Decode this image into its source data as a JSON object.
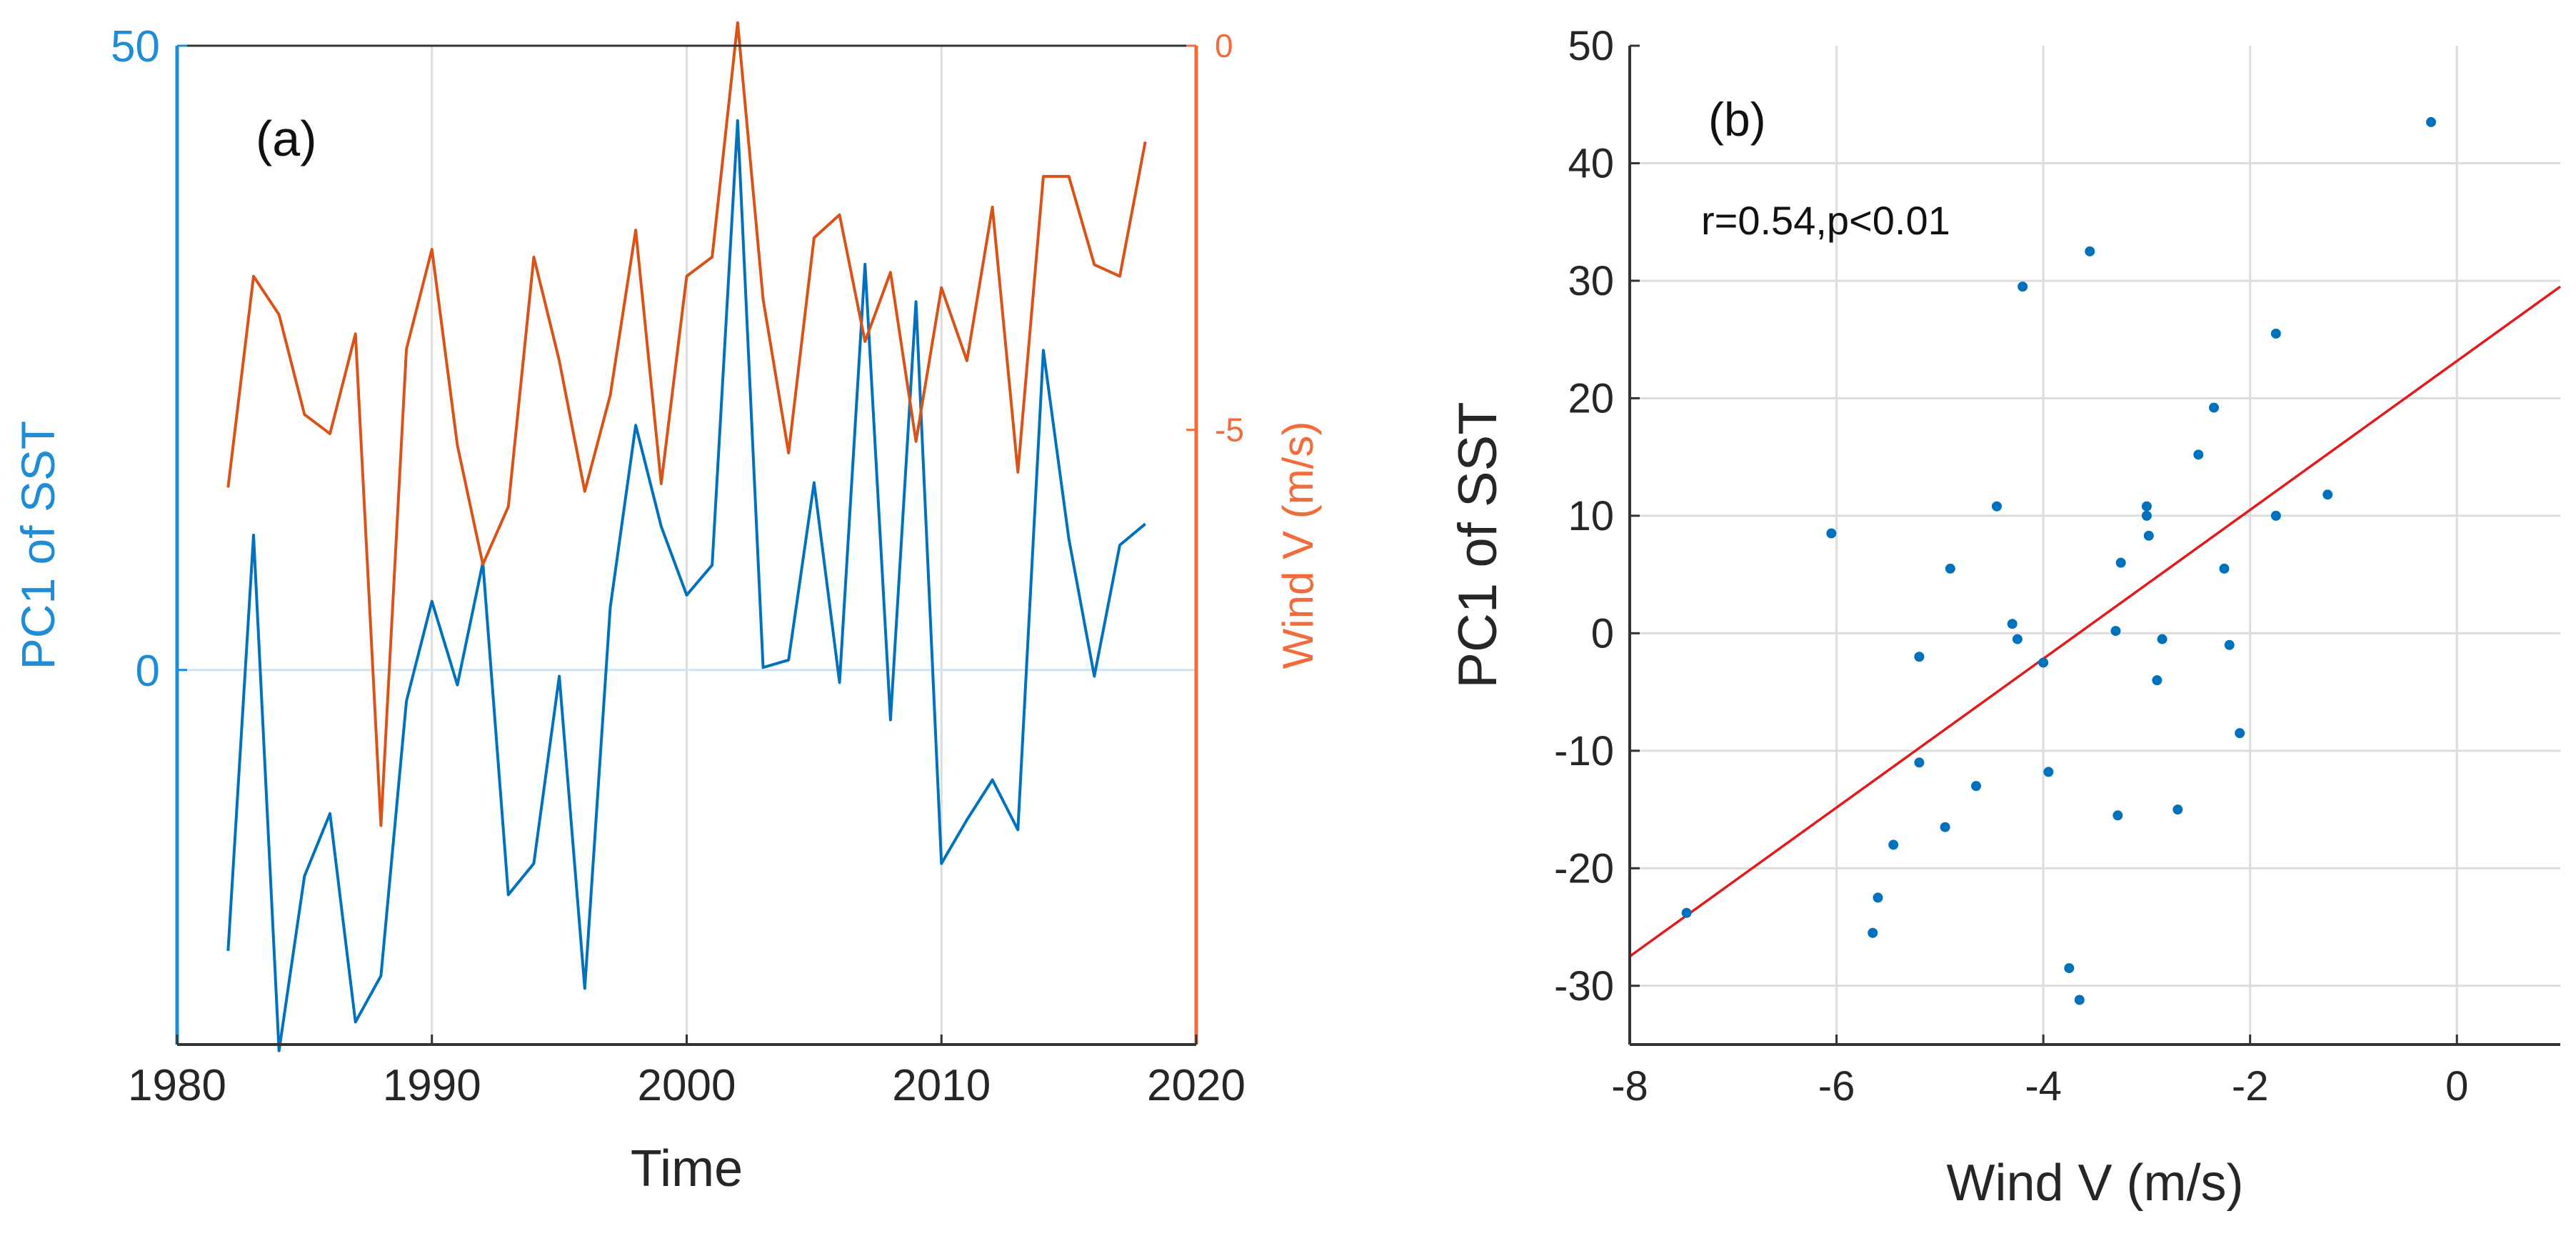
{
  "chart_data": [
    {
      "panel_label": "(a)",
      "type": "line",
      "xlabel": "Time",
      "xlim": [
        1980,
        2020
      ],
      "xticks": [
        "1980",
        "1990",
        "2000",
        "2010",
        "2020"
      ],
      "left_axis": {
        "label": "PC1 of SST",
        "ylim": [
          -30,
          50
        ],
        "ticks": [
          "0",
          "50"
        ],
        "tick_values": [
          0,
          50
        ],
        "color": "#1f8dd6"
      },
      "right_axis": {
        "label": "Wind V (m/s)",
        "ylim": [
          -13,
          0
        ],
        "ticks": [
          "-5",
          "0"
        ],
        "tick_values": [
          -5,
          0
        ],
        "color": "#f26b3a"
      },
      "grid": true,
      "series": [
        {
          "name": "PC1 of SST",
          "axis": "left",
          "color": "#0072bd",
          "x": [
            1982,
            1983,
            1984,
            1985,
            1986,
            1987,
            1988,
            1989,
            1990,
            1991,
            1992,
            1993,
            1994,
            1995,
            1996,
            1997,
            1998,
            1999,
            2000,
            2001,
            2002,
            2003,
            2004,
            2005,
            2006,
            2007,
            2008,
            2009,
            2010,
            2011,
            2012,
            2013,
            2014,
            2015,
            2016,
            2017,
            2018
          ],
          "values": [
            -22.5,
            10.8,
            -30.5,
            -16.5,
            -11.5,
            -28.2,
            -24.5,
            -2.5,
            5.5,
            -1.2,
            8.6,
            -18,
            -15.5,
            -0.5,
            -25.5,
            5,
            19.6,
            11.5,
            6,
            8.4,
            44,
            0.2,
            0.8,
            15,
            -1,
            32.5,
            -4,
            29.5,
            -15.5,
            -12,
            -8.8,
            -12.8,
            25.6,
            10.5,
            -0.5,
            10,
            11.7
          ]
        },
        {
          "name": "Wind V (m/s)",
          "axis": "right",
          "color": "#d95319",
          "x": [
            1982,
            1983,
            1984,
            1985,
            1986,
            1987,
            1988,
            1989,
            1990,
            1991,
            1992,
            1993,
            1994,
            1995,
            1996,
            1997,
            1998,
            1999,
            2000,
            2001,
            2002,
            2003,
            2004,
            2005,
            2006,
            2007,
            2008,
            2009,
            2010,
            2011,
            2012,
            2013,
            2014,
            2015,
            2016,
            2017,
            2018
          ],
          "values": [
            -5.75,
            -3.0,
            -3.5,
            -4.8,
            -5.05,
            -3.75,
            -10.15,
            -3.95,
            -2.65,
            -5.2,
            -6.75,
            -6.0,
            -2.75,
            -4.1,
            -5.8,
            -4.55,
            -2.4,
            -5.7,
            -3.0,
            -2.75,
            0.3,
            -3.3,
            -5.3,
            -2.5,
            -2.2,
            -3.85,
            -2.95,
            -5.15,
            -3.15,
            -4.1,
            -2.1,
            -5.55,
            -1.7,
            -1.7,
            -2.85,
            -3.0,
            -1.25
          ]
        }
      ]
    },
    {
      "panel_label": "(b)",
      "type": "scatter",
      "xlabel": "Wind V (m/s)",
      "ylabel": "PC1 of SST",
      "xlim": [
        -8,
        1
      ],
      "ylim": [
        -35,
        50
      ],
      "xticks": [
        "-8",
        "-6",
        "-4",
        "-2",
        "0"
      ],
      "yticks": [
        "50",
        "40",
        "30",
        "20",
        "10",
        "0",
        "-10",
        "-20",
        "-30"
      ],
      "grid": true,
      "annotation": "r=0.54,p<0.01",
      "point_color": "#0072bd",
      "fit_line": {
        "color": "#e31a1c",
        "x": [
          -8,
          1
        ],
        "y": [
          -27.5,
          29.5
        ]
      },
      "points": [
        {
          "x": -0.25,
          "y": 43.5
        },
        {
          "x": -3.55,
          "y": 32.5
        },
        {
          "x": -4.2,
          "y": 29.5
        },
        {
          "x": -1.75,
          "y": 25.5
        },
        {
          "x": -2.35,
          "y": 19.2
        },
        {
          "x": -2.5,
          "y": 15.2
        },
        {
          "x": -1.25,
          "y": 11.8
        },
        {
          "x": -4.45,
          "y": 10.8
        },
        {
          "x": -3.0,
          "y": 10.8
        },
        {
          "x": -3.0,
          "y": 10.0
        },
        {
          "x": -1.75,
          "y": 10.0
        },
        {
          "x": -6.05,
          "y": 8.5
        },
        {
          "x": -2.98,
          "y": 8.3
        },
        {
          "x": -3.25,
          "y": 6.0
        },
        {
          "x": -2.25,
          "y": 5.5
        },
        {
          "x": -4.9,
          "y": 5.5
        },
        {
          "x": -4.3,
          "y": 0.8
        },
        {
          "x": -3.3,
          "y": 0.2
        },
        {
          "x": -4.25,
          "y": -0.5
        },
        {
          "x": -2.85,
          "y": -0.5
        },
        {
          "x": -2.2,
          "y": -1.0
        },
        {
          "x": -5.2,
          "y": -2.0
        },
        {
          "x": -4.0,
          "y": -2.5
        },
        {
          "x": -2.9,
          "y": -4.0
        },
        {
          "x": -2.1,
          "y": -8.5
        },
        {
          "x": -5.2,
          "y": -11.0
        },
        {
          "x": -3.95,
          "y": -11.8
        },
        {
          "x": -4.65,
          "y": -13.0
        },
        {
          "x": -2.7,
          "y": -15.0
        },
        {
          "x": -3.28,
          "y": -15.5
        },
        {
          "x": -4.95,
          "y": -16.5
        },
        {
          "x": -5.45,
          "y": -18.0
        },
        {
          "x": -5.6,
          "y": -22.5
        },
        {
          "x": -7.45,
          "y": -23.8
        },
        {
          "x": -5.65,
          "y": -25.5
        },
        {
          "x": -3.75,
          "y": -28.5
        },
        {
          "x": -3.65,
          "y": -31.2
        }
      ]
    }
  ]
}
